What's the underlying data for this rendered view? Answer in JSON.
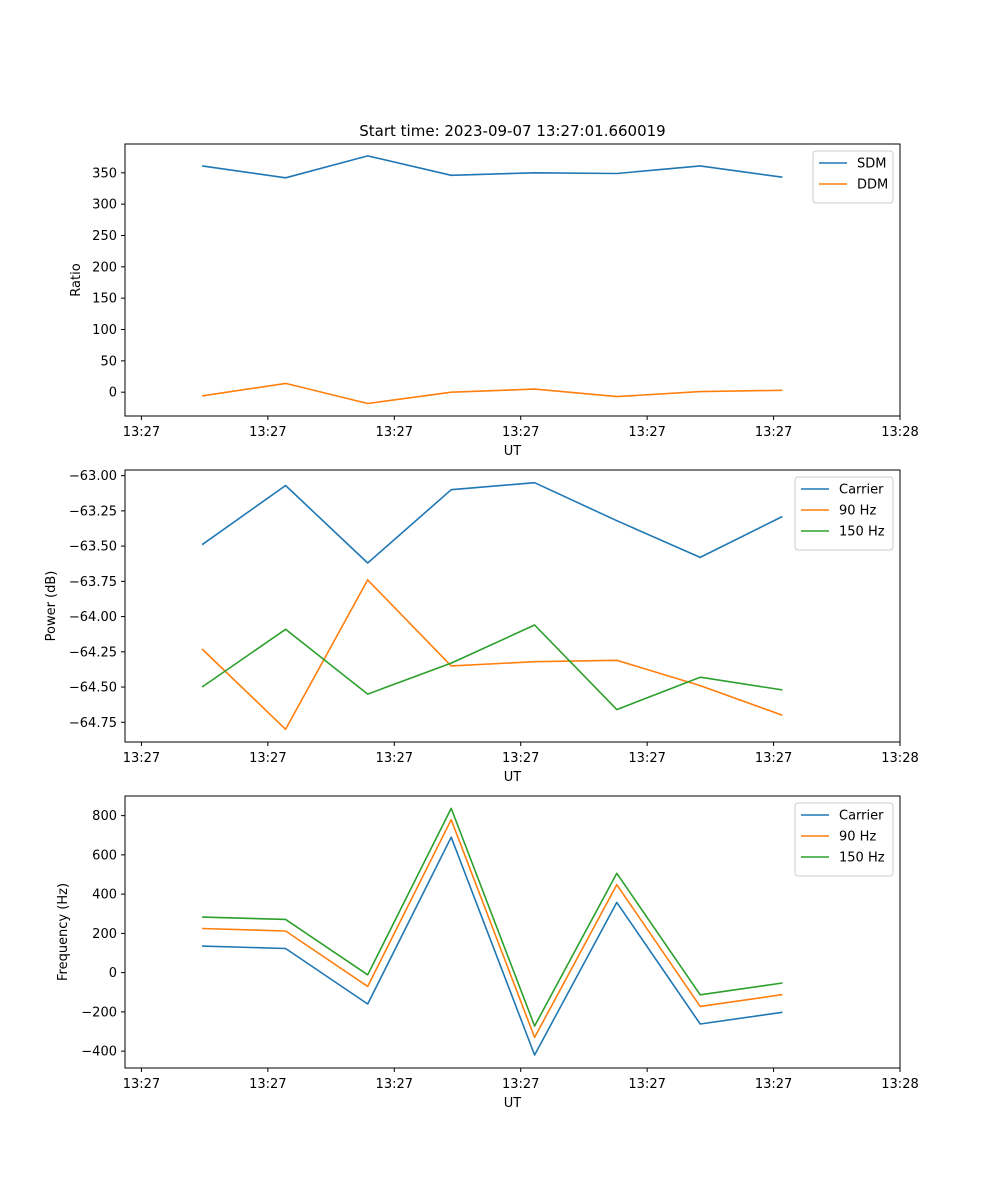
{
  "figure": {
    "title": "Start time: 2023-09-07 13:27:01.660019"
  },
  "chart_data": [
    {
      "type": "line",
      "xlabel": "UT",
      "ylabel": "Ratio",
      "x_ticks": [
        {
          "value": 0.0,
          "label": "13:27"
        },
        {
          "value": 1.0,
          "label": "13:27"
        },
        {
          "value": 2.0,
          "label": "13:27"
        },
        {
          "value": 3.0,
          "label": "13:27"
        },
        {
          "value": 4.0,
          "label": "13:27"
        },
        {
          "value": 5.0,
          "label": "13:27"
        },
        {
          "value": 6.0,
          "label": "13:28"
        }
      ],
      "xlim": [
        -0.13,
        6.0
      ],
      "ylim": [
        -38,
        396
      ],
      "yticks": [
        0,
        50,
        100,
        150,
        200,
        250,
        300,
        350
      ],
      "ytick_labels": [
        "0",
        "50",
        "100",
        "150",
        "200",
        "250",
        "300",
        "350"
      ],
      "x": [
        0.48,
        1.14,
        1.79,
        2.45,
        3.11,
        3.76,
        4.42,
        5.07
      ],
      "series": [
        {
          "name": "SDM",
          "color": "#1f77b4",
          "values": [
            361,
            342,
            377,
            346,
            350,
            349,
            361,
            343
          ]
        },
        {
          "name": "DDM",
          "color": "#ff7f0e",
          "values": [
            -6,
            14,
            -18,
            0,
            5,
            -7,
            1,
            3
          ]
        }
      ]
    },
    {
      "type": "line",
      "xlabel": "UT",
      "ylabel": "Power (dB)",
      "x_ticks": [
        {
          "value": 0.0,
          "label": "13:27"
        },
        {
          "value": 1.0,
          "label": "13:27"
        },
        {
          "value": 2.0,
          "label": "13:27"
        },
        {
          "value": 3.0,
          "label": "13:27"
        },
        {
          "value": 4.0,
          "label": "13:27"
        },
        {
          "value": 5.0,
          "label": "13:27"
        },
        {
          "value": 6.0,
          "label": "13:28"
        }
      ],
      "xlim": [
        -0.13,
        6.0
      ],
      "ylim": [
        -64.89,
        -62.96
      ],
      "yticks": [
        -64.75,
        -64.5,
        -64.25,
        -64.0,
        -63.75,
        -63.5,
        -63.25,
        -63.0
      ],
      "ytick_labels": [
        "−64.75",
        "−64.50",
        "−64.25",
        "−64.00",
        "−63.75",
        "−63.50",
        "−63.25",
        "−63.00"
      ],
      "x": [
        0.48,
        1.14,
        1.79,
        2.45,
        3.11,
        3.76,
        4.42,
        5.07
      ],
      "series": [
        {
          "name": "Carrier",
          "color": "#1f77b4",
          "values": [
            -63.49,
            -63.07,
            -63.62,
            -63.1,
            -63.05,
            -63.32,
            -63.58,
            -63.29
          ]
        },
        {
          "name": "90 Hz",
          "color": "#ff7f0e",
          "values": [
            -64.23,
            -64.8,
            -63.74,
            -64.35,
            -64.32,
            -64.31,
            -64.49,
            -64.7
          ]
        },
        {
          "name": "150 Hz",
          "color": "#2ca02c",
          "values": [
            -64.5,
            -64.09,
            -64.55,
            -64.33,
            -64.06,
            -64.66,
            -64.43,
            -64.52
          ]
        }
      ]
    },
    {
      "type": "line",
      "xlabel": "UT",
      "ylabel": "Frequency (Hz)",
      "x_ticks": [
        {
          "value": 0.0,
          "label": "13:27"
        },
        {
          "value": 1.0,
          "label": "13:27"
        },
        {
          "value": 2.0,
          "label": "13:27"
        },
        {
          "value": 3.0,
          "label": "13:27"
        },
        {
          "value": 4.0,
          "label": "13:27"
        },
        {
          "value": 5.0,
          "label": "13:27"
        },
        {
          "value": 6.0,
          "label": "13:28"
        }
      ],
      "xlim": [
        -0.13,
        6.0
      ],
      "ylim": [
        -486,
        900
      ],
      "yticks": [
        -400,
        -200,
        0,
        200,
        400,
        600,
        800
      ],
      "ytick_labels": [
        "−400",
        "−200",
        "0",
        "200",
        "400",
        "600",
        "800"
      ],
      "x": [
        0.48,
        1.14,
        1.79,
        2.45,
        3.11,
        3.76,
        4.42,
        5.07
      ],
      "series": [
        {
          "name": "Carrier",
          "color": "#1f77b4",
          "values": [
            135,
            123,
            -160,
            690,
            -420,
            358,
            -262,
            -202
          ]
        },
        {
          "name": "90 Hz",
          "color": "#ff7f0e",
          "values": [
            225,
            212,
            -70,
            779,
            -330,
            448,
            -172,
            -112
          ]
        },
        {
          "name": "150 Hz",
          "color": "#2ca02c",
          "values": [
            283,
            271,
            -11,
            837,
            -272,
            506,
            -113,
            -53
          ]
        }
      ]
    }
  ]
}
